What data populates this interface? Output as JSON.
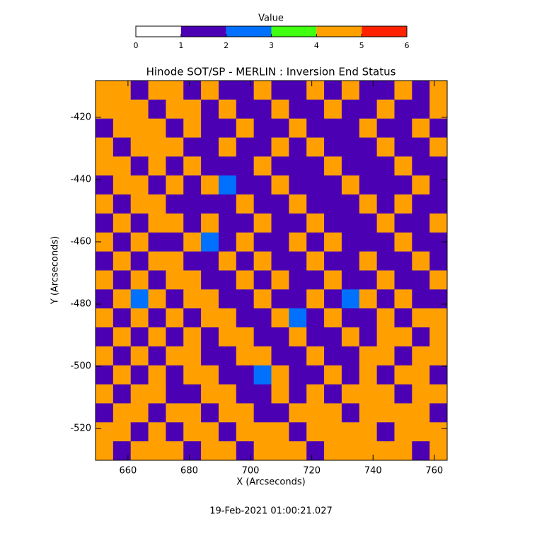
{
  "chart_data": {
    "type": "heatmap",
    "title": "Hinode SOT/SP - MERLIN : Inversion End Status",
    "x_label": "X (Arcseconds)",
    "y_label": "Y (Arcseconds)",
    "footer": "19-Feb-2021 01:00:21.027",
    "colorbar_title": "Value",
    "clim": [
      0,
      6
    ],
    "cticks": [
      0,
      1,
      2,
      3,
      4,
      5,
      6
    ],
    "colors": [
      "#ffffff",
      "#4c00b4",
      "#0070ff",
      "#40ff10",
      "#ffa000",
      "#ff2000"
    ],
    "xlim": [
      649.4,
      764.2
    ],
    "xticks": [
      660,
      680,
      700,
      720,
      740,
      760
    ],
    "ylim": [
      -530.2,
      -408.2
    ],
    "yticks": [
      -420,
      -440,
      -460,
      -480,
      -500,
      -520
    ],
    "z": [
      [
        4,
        4,
        1,
        4,
        4,
        1,
        4,
        1,
        1,
        4,
        1,
        1,
        4,
        1,
        4,
        1,
        1,
        4,
        1,
        4
      ],
      [
        4,
        4,
        4,
        1,
        4,
        4,
        1,
        4,
        1,
        1,
        4,
        1,
        1,
        4,
        1,
        1,
        4,
        1,
        1,
        4
      ],
      [
        1,
        4,
        4,
        4,
        1,
        4,
        1,
        1,
        4,
        1,
        1,
        4,
        1,
        1,
        1,
        4,
        1,
        1,
        4,
        1
      ],
      [
        4,
        1,
        4,
        4,
        4,
        1,
        1,
        4,
        1,
        1,
        4,
        1,
        4,
        1,
        1,
        1,
        4,
        1,
        1,
        4
      ],
      [
        4,
        4,
        1,
        4,
        1,
        4,
        1,
        1,
        1,
        4,
        1,
        1,
        1,
        4,
        1,
        1,
        1,
        4,
        1,
        1
      ],
      [
        1,
        4,
        4,
        1,
        4,
        1,
        4,
        2,
        1,
        1,
        4,
        1,
        1,
        1,
        4,
        1,
        1,
        1,
        4,
        1
      ],
      [
        4,
        1,
        4,
        4,
        1,
        1,
        1,
        1,
        4,
        1,
        1,
        4,
        1,
        1,
        1,
        4,
        1,
        4,
        1,
        1
      ],
      [
        1,
        4,
        1,
        4,
        4,
        1,
        4,
        1,
        1,
        4,
        1,
        1,
        4,
        1,
        1,
        1,
        4,
        1,
        1,
        4
      ],
      [
        4,
        1,
        4,
        1,
        1,
        4,
        2,
        1,
        4,
        1,
        1,
        4,
        1,
        4,
        1,
        1,
        1,
        4,
        1,
        1
      ],
      [
        1,
        4,
        1,
        4,
        4,
        1,
        1,
        4,
        1,
        4,
        1,
        1,
        4,
        1,
        1,
        4,
        1,
        1,
        4,
        1
      ],
      [
        4,
        1,
        4,
        1,
        4,
        4,
        1,
        1,
        4,
        1,
        4,
        1,
        1,
        4,
        1,
        1,
        4,
        1,
        1,
        4
      ],
      [
        1,
        4,
        2,
        4,
        1,
        4,
        4,
        1,
        1,
        4,
        1,
        1,
        4,
        1,
        2,
        4,
        1,
        4,
        1,
        1
      ],
      [
        4,
        1,
        4,
        1,
        4,
        1,
        4,
        4,
        1,
        1,
        4,
        2,
        1,
        4,
        1,
        1,
        4,
        1,
        4,
        4
      ],
      [
        1,
        4,
        1,
        4,
        1,
        4,
        1,
        4,
        4,
        1,
        1,
        4,
        1,
        1,
        4,
        1,
        4,
        4,
        1,
        4
      ],
      [
        4,
        1,
        4,
        1,
        4,
        4,
        1,
        1,
        4,
        4,
        1,
        1,
        4,
        1,
        1,
        4,
        4,
        1,
        4,
        4
      ],
      [
        1,
        4,
        1,
        4,
        1,
        4,
        4,
        1,
        1,
        2,
        4,
        1,
        1,
        4,
        1,
        4,
        1,
        4,
        4,
        1
      ],
      [
        4,
        1,
        4,
        4,
        1,
        1,
        4,
        4,
        1,
        1,
        4,
        1,
        4,
        1,
        4,
        4,
        4,
        1,
        4,
        4
      ],
      [
        1,
        4,
        4,
        1,
        4,
        4,
        1,
        4,
        4,
        1,
        1,
        4,
        4,
        4,
        1,
        4,
        4,
        4,
        4,
        1
      ],
      [
        4,
        4,
        1,
        4,
        1,
        4,
        4,
        1,
        4,
        4,
        4,
        1,
        4,
        4,
        4,
        4,
        1,
        4,
        4,
        4
      ],
      [
        4,
        1,
        4,
        4,
        4,
        1,
        4,
        4,
        1,
        4,
        4,
        4,
        1,
        4,
        4,
        4,
        4,
        4,
        1,
        4
      ]
    ]
  }
}
